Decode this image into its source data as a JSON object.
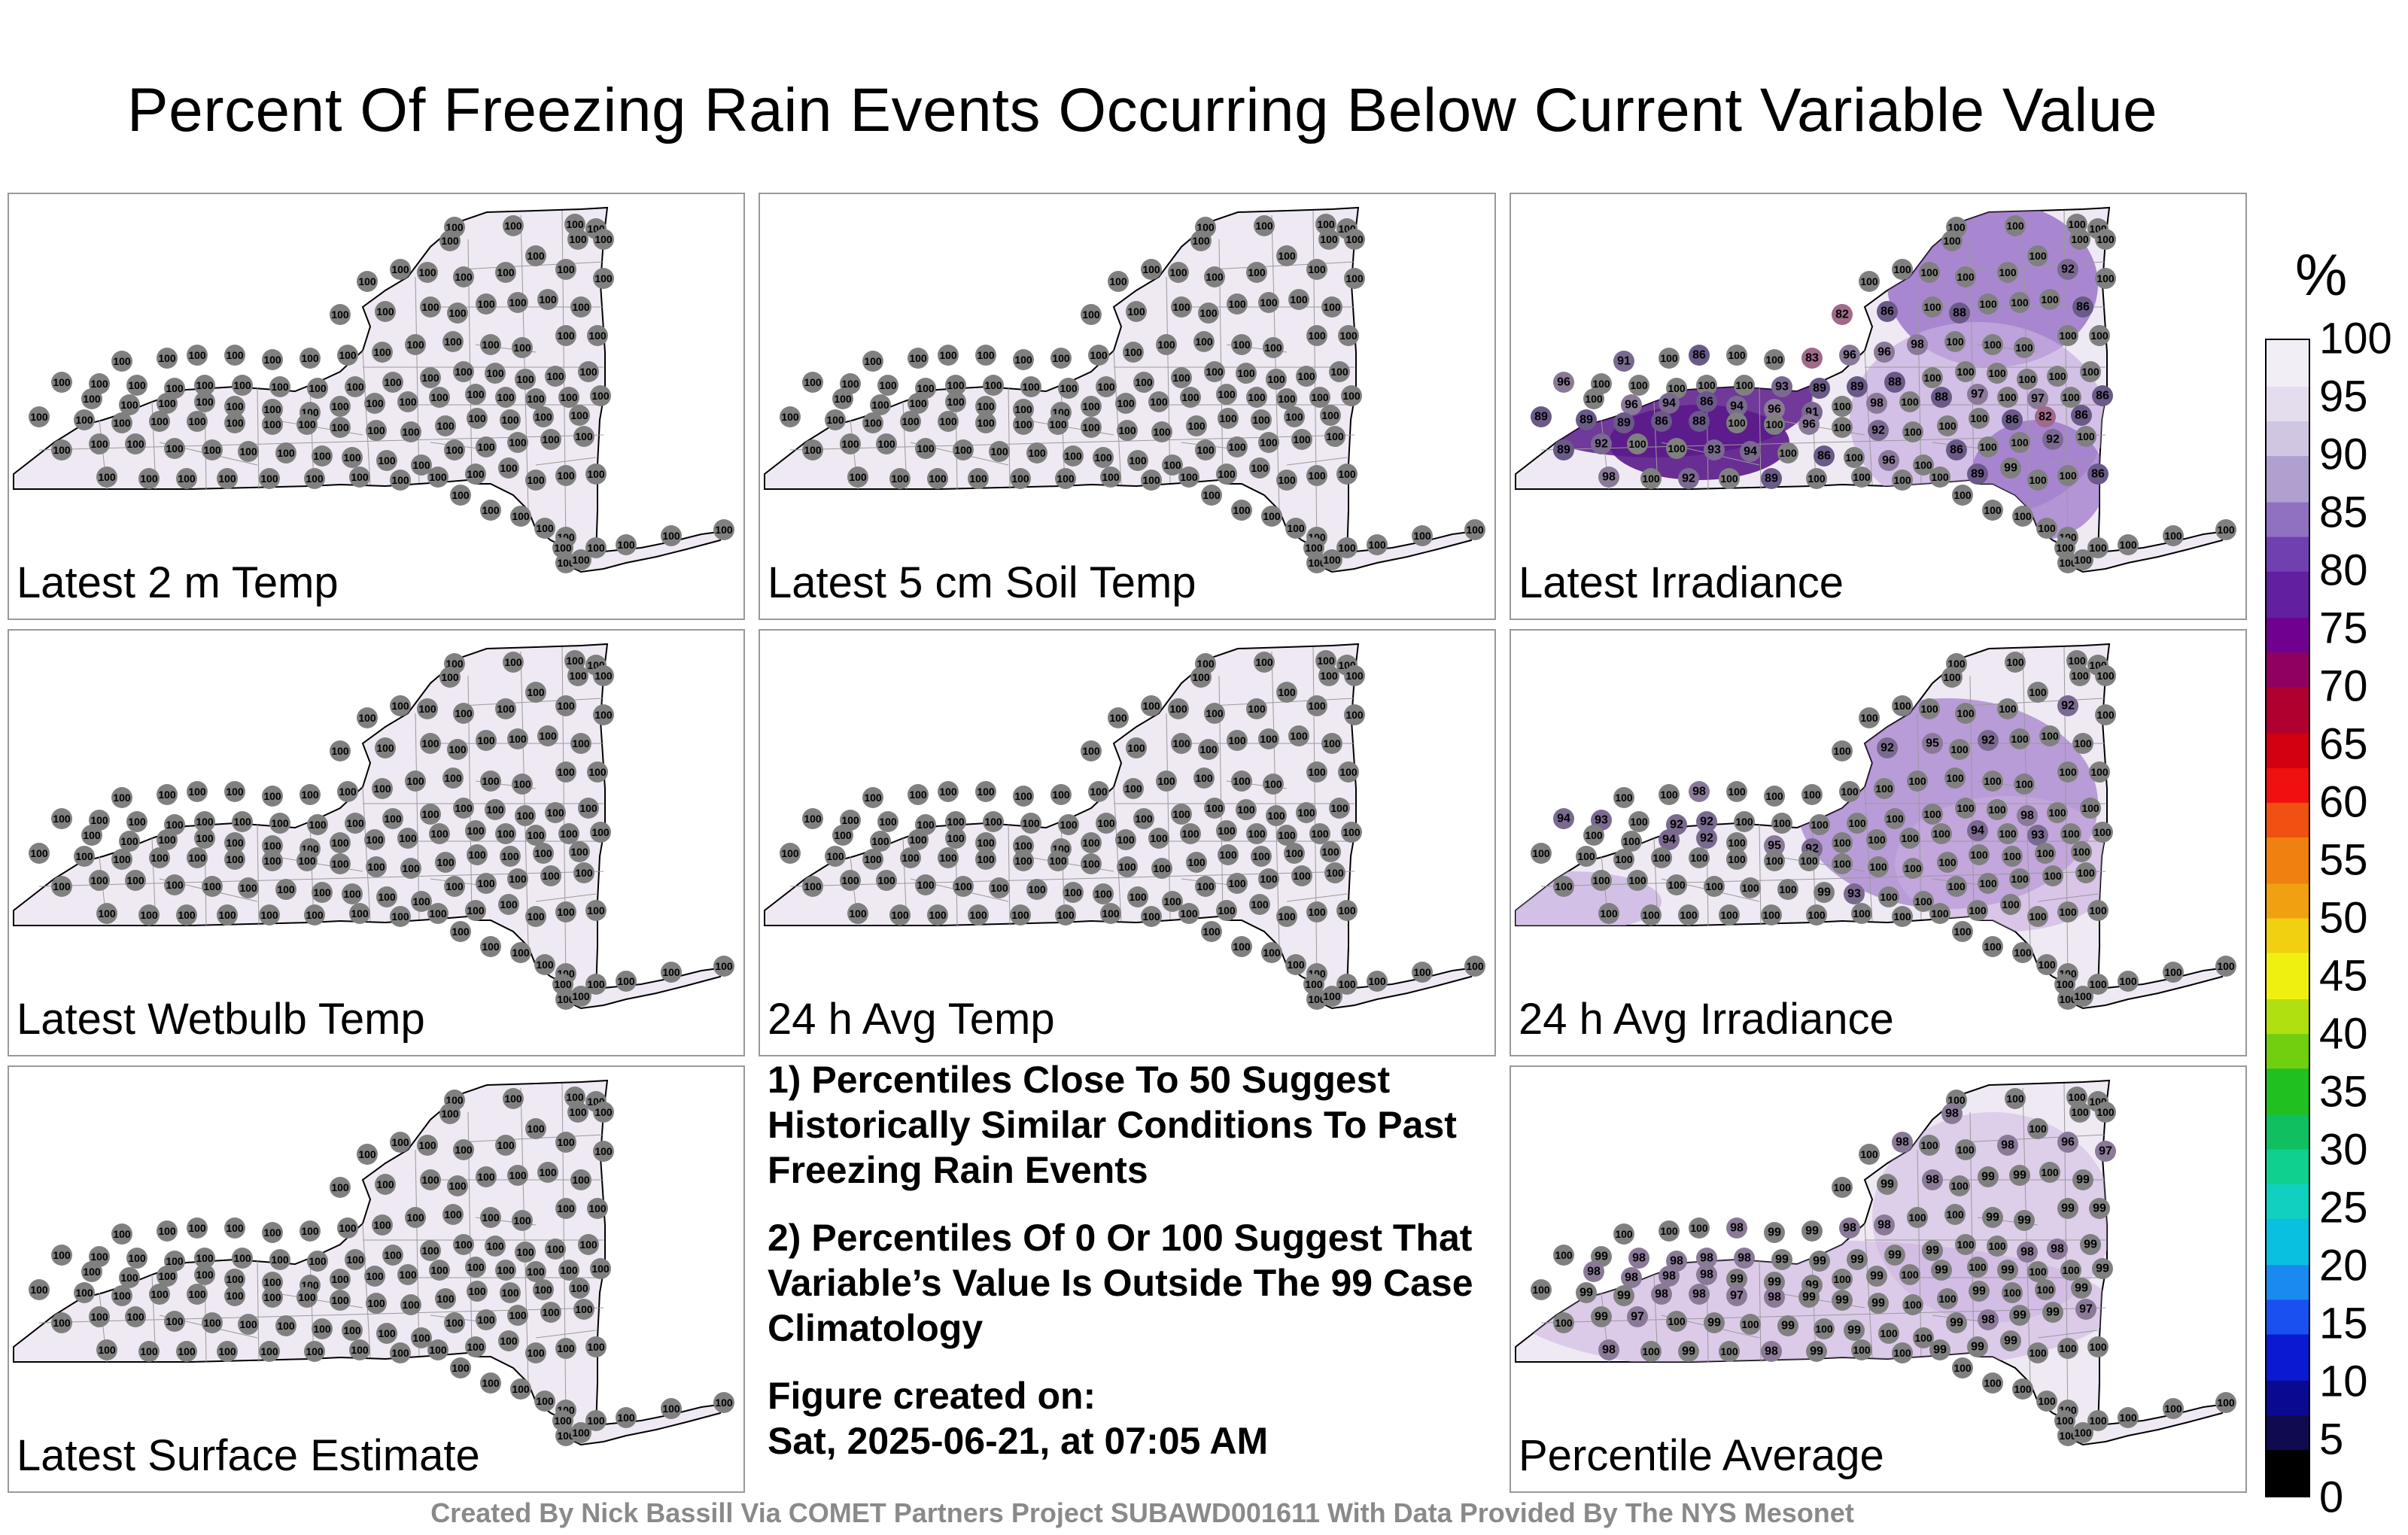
{
  "title": "Percent Of Freezing Rain Events Occurring Below Current Variable Value",
  "colorbar": {
    "unit": "%",
    "ticks": [
      "100",
      "95",
      "90",
      "85",
      "80",
      "75",
      "70",
      "65",
      "60",
      "55",
      "50",
      "45",
      "40",
      "35",
      "30",
      "25",
      "20",
      "15",
      "10",
      "5",
      "0"
    ]
  },
  "notes": {
    "note1": "1) Percentiles Close To 50 Suggest Historically Similar Conditions To Past Freezing Rain Events",
    "note2": "2) Percentiles Of 0 Or 100 Suggest That Variable’s Value Is Outside The 99 Case Climatology",
    "created_label": "Figure created on:",
    "created_value": "Sat, 2025-06-21, at 07:05 AM"
  },
  "footer": "Created By Nick Bassill Via COMET Partners Project SUBAWD001611 With Data Provided By The NYS Mesonet",
  "colors": {
    "map_fill": "#efe9f3",
    "station_fill": "#7f7f7f",
    "purple_dark": "#5a1a8a",
    "purple_mid": "#8a5cc0",
    "purple_light": "#c8aee0"
  },
  "panels": [
    {
      "id": "p1",
      "label": "Latest 2 m Temp",
      "values": [
        "100",
        "100",
        "100",
        "100",
        "100",
        "100",
        "100",
        "100",
        "100",
        "100",
        "100",
        "100",
        "100",
        "100",
        "100",
        "100",
        "100",
        "100",
        "100",
        "100",
        "100",
        "100",
        "100",
        "100",
        "100",
        "100",
        "100",
        "100",
        "100",
        "100",
        "100",
        "100",
        "100",
        "100",
        "100",
        "100",
        "100",
        "100",
        "100",
        "100",
        "100",
        "100",
        "100",
        "100",
        "100",
        "100",
        "100",
        "100",
        "100",
        "100",
        "100",
        "100",
        "100",
        "100",
        "100",
        "100",
        "100",
        "100",
        "100",
        "100",
        "100",
        "100",
        "100",
        "100",
        "100",
        "100",
        "100",
        "100",
        "100",
        "100",
        "100",
        "100",
        "100",
        "100",
        "100",
        "100",
        "100",
        "100",
        "100",
        "100",
        "100",
        "100",
        "100",
        "100",
        "100",
        "100",
        "100",
        "100",
        "100",
        "100",
        "100",
        "100",
        "100",
        "100",
        "100",
        "100",
        "100",
        "100",
        "100",
        "100",
        "100",
        "100",
        "100",
        "100",
        "100",
        "100",
        "100",
        "100",
        "100",
        "100",
        "100",
        "100",
        "100",
        "100",
        "100",
        "100",
        "100",
        "100",
        "100",
        "100",
        "100",
        "100",
        "100",
        "100",
        "100",
        "100",
        "100"
      ]
    },
    {
      "id": "p2",
      "label": "Latest 5 cm Soil Temp",
      "values": [
        "100",
        "100",
        "100",
        "100",
        "100",
        "100",
        "100",
        "100",
        "100",
        "100",
        "100",
        "100",
        "100",
        "100",
        "100",
        "100",
        "100",
        "100",
        "100",
        "100",
        "100",
        "100",
        "100",
        "100",
        "100",
        "100",
        "100",
        "100",
        "100",
        "100",
        "100",
        "100",
        "100",
        "100",
        "100",
        "100",
        "100",
        "100",
        "100",
        "100",
        "100",
        "100",
        "100",
        "100",
        "100",
        "100",
        "100",
        "100",
        "100",
        "100",
        "100",
        "100",
        "100",
        "100",
        "100",
        "100",
        "100",
        "100",
        "100",
        "100",
        "100",
        "100",
        "100",
        "100",
        "100",
        "100",
        "100",
        "100",
        "100",
        "100",
        "100",
        "100",
        "100",
        "100",
        "100",
        "100",
        "100",
        "100",
        "100",
        "100",
        "100",
        "100",
        "100",
        "100",
        "100",
        "100",
        "100",
        "100",
        "100",
        "100",
        "100",
        "100",
        "100",
        "100",
        "100",
        "100",
        "100",
        "100",
        "100",
        "100",
        "100",
        "100",
        "100",
        "100",
        "100",
        "100",
        "100",
        "100",
        "100",
        "100",
        "100",
        "100",
        "100",
        "100",
        "100",
        "100",
        "100",
        "100",
        "100",
        "100",
        "100",
        "100",
        "100",
        "100",
        "100",
        "100",
        "100"
      ]
    },
    {
      "id": "p3",
      "label": "Latest Irradiance",
      "values": [
        "100",
        "100",
        "100",
        "100",
        "100",
        "100",
        "100",
        "100",
        "100",
        "100",
        "100",
        "100",
        "92",
        "100",
        "100",
        "82",
        "86",
        "100",
        "88",
        "100",
        "100",
        "100",
        "86",
        "91",
        "100",
        "86",
        "100",
        "100",
        "83",
        "96",
        "96",
        "98",
        "100",
        "100",
        "100",
        "100",
        "100",
        "96",
        "100",
        "100",
        "100",
        "100",
        "100",
        "93",
        "89",
        "89",
        "88",
        "100",
        "100",
        "100",
        "100",
        "100",
        "100",
        "100",
        "96",
        "94",
        "86",
        "94",
        "96",
        "91",
        "100",
        "98",
        "100",
        "88",
        "97",
        "100",
        "97",
        "100",
        "86",
        "89",
        "89",
        "89",
        "86",
        "88",
        "100",
        "100",
        "96",
        "100",
        "92",
        "100",
        "100",
        "100",
        "86",
        "82",
        "86",
        "89",
        "92",
        "100",
        "100",
        "93",
        "94",
        "100",
        "86",
        "100",
        "96",
        "100",
        "86",
        "100",
        "100",
        "92",
        "100",
        "98",
        "100",
        "92",
        "100",
        "89",
        "100",
        "100",
        "100",
        "100",
        "89",
        "99",
        "100",
        "100",
        "86",
        "100",
        "100",
        "100",
        "100",
        "100",
        "100",
        "100",
        "100",
        "100",
        "100",
        "100",
        "100"
      ]
    },
    {
      "id": "p4",
      "label": "Latest Wetbulb Temp",
      "values": [
        "100",
        "100",
        "100",
        "100",
        "100",
        "100",
        "100",
        "100",
        "100",
        "100",
        "100",
        "100",
        "100",
        "100",
        "100",
        "100",
        "100",
        "100",
        "100",
        "100",
        "100",
        "100",
        "100",
        "100",
        "100",
        "100",
        "100",
        "100",
        "100",
        "100",
        "100",
        "100",
        "100",
        "100",
        "100",
        "100",
        "100",
        "100",
        "100",
        "100",
        "100",
        "100",
        "100",
        "100",
        "100",
        "100",
        "100",
        "100",
        "100",
        "100",
        "100",
        "100",
        "100",
        "100",
        "100",
        "100",
        "100",
        "100",
        "100",
        "100",
        "100",
        "100",
        "100",
        "100",
        "100",
        "100",
        "100",
        "100",
        "100",
        "100",
        "100",
        "100",
        "100",
        "100",
        "100",
        "100",
        "100",
        "100",
        "100",
        "100",
        "100",
        "100",
        "100",
        "100",
        "100",
        "100",
        "100",
        "100",
        "100",
        "100",
        "100",
        "100",
        "100",
        "100",
        "100",
        "100",
        "100",
        "100",
        "100",
        "100",
        "100",
        "100",
        "100",
        "100",
        "100",
        "100",
        "100",
        "100",
        "100",
        "100",
        "100",
        "100",
        "100",
        "100",
        "100",
        "100",
        "100",
        "100",
        "100",
        "100",
        "100",
        "100",
        "100",
        "100",
        "100",
        "100",
        "100"
      ]
    },
    {
      "id": "p5",
      "label": "24 h Avg Temp",
      "values": [
        "100",
        "100",
        "100",
        "100",
        "100",
        "100",
        "100",
        "100",
        "100",
        "100",
        "100",
        "100",
        "100",
        "100",
        "100",
        "100",
        "100",
        "100",
        "100",
        "100",
        "100",
        "100",
        "100",
        "100",
        "100",
        "100",
        "100",
        "100",
        "100",
        "100",
        "100",
        "100",
        "100",
        "100",
        "100",
        "100",
        "100",
        "100",
        "100",
        "100",
        "100",
        "100",
        "100",
        "100",
        "100",
        "100",
        "100",
        "100",
        "100",
        "100",
        "100",
        "100",
        "100",
        "100",
        "100",
        "100",
        "100",
        "100",
        "100",
        "100",
        "100",
        "100",
        "100",
        "100",
        "100",
        "100",
        "100",
        "100",
        "100",
        "100",
        "100",
        "100",
        "100",
        "100",
        "100",
        "100",
        "100",
        "100",
        "100",
        "100",
        "100",
        "100",
        "100",
        "100",
        "100",
        "100",
        "100",
        "100",
        "100",
        "100",
        "100",
        "100",
        "100",
        "100",
        "100",
        "100",
        "100",
        "100",
        "100",
        "100",
        "100",
        "100",
        "100",
        "100",
        "100",
        "100",
        "100",
        "100",
        "100",
        "100",
        "100",
        "100",
        "100",
        "100",
        "100",
        "100",
        "100",
        "100",
        "100",
        "100",
        "100",
        "100",
        "100",
        "100",
        "100",
        "100",
        "100"
      ]
    },
    {
      "id": "p6",
      "label": "24 h Avg Irradiance",
      "values": [
        "100",
        "100",
        "100",
        "100",
        "100",
        "100",
        "100",
        "100",
        "100",
        "100",
        "100",
        "100",
        "92",
        "100",
        "100",
        "100",
        "92",
        "95",
        "100",
        "92",
        "100",
        "100",
        "100",
        "100",
        "100",
        "98",
        "100",
        "100",
        "100",
        "100",
        "100",
        "100",
        "100",
        "100",
        "100",
        "100",
        "100",
        "94",
        "93",
        "100",
        "92",
        "92",
        "100",
        "100",
        "100",
        "100",
        "100",
        "100",
        "100",
        "100",
        "98",
        "100",
        "100",
        "100",
        "100",
        "94",
        "92",
        "100",
        "95",
        "92",
        "100",
        "100",
        "100",
        "100",
        "94",
        "100",
        "93",
        "100",
        "100",
        "100",
        "100",
        "100",
        "100",
        "100",
        "100",
        "100",
        "100",
        "100",
        "100",
        "100",
        "100",
        "100",
        "100",
        "100",
        "100",
        "100",
        "100",
        "100",
        "100",
        "100",
        "100",
        "100",
        "99",
        "93",
        "100",
        "100",
        "100",
        "100",
        "100",
        "100",
        "100",
        "100",
        "100",
        "100",
        "100",
        "100",
        "100",
        "100",
        "100",
        "100",
        "100",
        "100",
        "100",
        "100",
        "100",
        "100",
        "100",
        "100",
        "100",
        "100",
        "100",
        "100",
        "100",
        "100",
        "100",
        "100",
        "100"
      ]
    },
    {
      "id": "p7",
      "label": "Latest Surface Estimate",
      "values": [
        "100",
        "100",
        "100",
        "100",
        "100",
        "100",
        "100",
        "100",
        "100",
        "100",
        "100",
        "100",
        "100",
        "100",
        "100",
        "100",
        "100",
        "100",
        "100",
        "100",
        "100",
        "100",
        "100",
        "100",
        "100",
        "100",
        "100",
        "100",
        "100",
        "100",
        "100",
        "100",
        "100",
        "100",
        "100",
        "100",
        "100",
        "100",
        "100",
        "100",
        "100",
        "100",
        "100",
        "100",
        "100",
        "100",
        "100",
        "100",
        "100",
        "100",
        "100",
        "100",
        "100",
        "100",
        "100",
        "100",
        "100",
        "100",
        "100",
        "100",
        "100",
        "100",
        "100",
        "100",
        "100",
        "100",
        "100",
        "100",
        "100",
        "100",
        "100",
        "100",
        "100",
        "100",
        "100",
        "100",
        "100",
        "100",
        "100",
        "100",
        "100",
        "100",
        "100",
        "100",
        "100",
        "100",
        "100",
        "100",
        "100",
        "100",
        "100",
        "100",
        "100",
        "100",
        "100",
        "100",
        "100",
        "100",
        "100",
        "100",
        "100",
        "100",
        "100",
        "100",
        "100",
        "100",
        "100",
        "100",
        "100",
        "100",
        "100",
        "100",
        "100",
        "100",
        "100",
        "100",
        "100",
        "100",
        "100",
        "100",
        "100",
        "100",
        "100",
        "100",
        "100",
        "100",
        "100"
      ]
    },
    {
      "id": "p9",
      "label": "Percentile Average",
      "values": [
        "100",
        "100",
        "100",
        "100",
        "100",
        "98",
        "100",
        "100",
        "98",
        "100",
        "100",
        "98",
        "96",
        "97",
        "100",
        "100",
        "99",
        "98",
        "100",
        "99",
        "99",
        "100",
        "99",
        "100",
        "100",
        "100",
        "98",
        "99",
        "99",
        "98",
        "98",
        "100",
        "100",
        "99",
        "99",
        "99",
        "99",
        "100",
        "99",
        "98",
        "98",
        "98",
        "98",
        "99",
        "99",
        "99",
        "99",
        "99",
        "100",
        "100",
        "98",
        "98",
        "99",
        "98",
        "98",
        "98",
        "98",
        "99",
        "99",
        "99",
        "100",
        "99",
        "100",
        "99",
        "100",
        "99",
        "100",
        "100",
        "99",
        "100",
        "99",
        "99",
        "98",
        "98",
        "97",
        "98",
        "99",
        "99",
        "99",
        "100",
        "100",
        "99",
        "100",
        "100",
        "99",
        "100",
        "99",
        "97",
        "100",
        "99",
        "100",
        "99",
        "100",
        "99",
        "100",
        "100",
        "99",
        "98",
        "99",
        "99",
        "97",
        "98",
        "100",
        "99",
        "100",
        "98",
        "99",
        "100",
        "100",
        "99",
        "99",
        "99",
        "100",
        "100",
        "100",
        "100",
        "100",
        "100",
        "100",
        "100",
        "100",
        "100",
        "100",
        "100",
        "100",
        "100",
        "100"
      ]
    }
  ]
}
